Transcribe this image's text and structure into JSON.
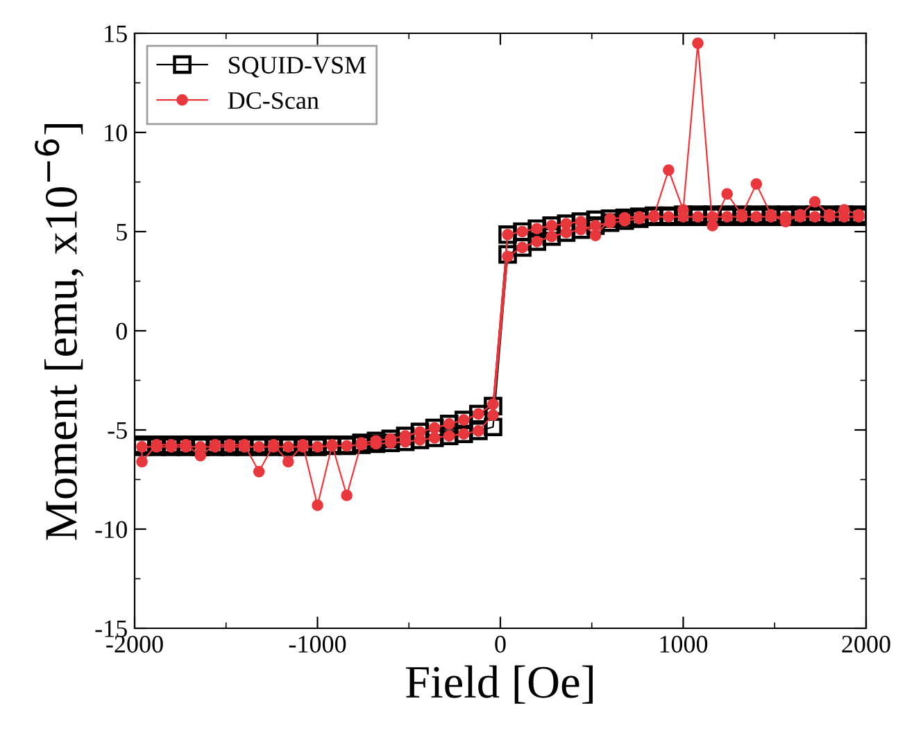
{
  "chart_data": {
    "type": "line",
    "xlabel": "Field [Oe]",
    "ylabel": "Moment [emu, x10$^{−6}$]",
    "xlim": [
      -2000,
      2000
    ],
    "xticks": [
      -2000,
      -1000,
      0,
      1000,
      2000
    ],
    "ylim": [
      -15,
      15
    ],
    "yticks": [
      -15,
      -10,
      -5,
      0,
      5,
      10,
      15
    ],
    "grid": false,
    "legend": "top left",
    "series": [
      {
        "name": "SQUID-VSM",
        "color": "#000000",
        "marker": "square",
        "x": [
          1960,
          1880,
          1800,
          1720,
          1640,
          1560,
          1480,
          1400,
          1320,
          1240,
          1160,
          1080,
          1000,
          920,
          840,
          760,
          680,
          600,
          520,
          440,
          360,
          280,
          200,
          120,
          40,
          -40,
          -120,
          -200,
          -280,
          -360,
          -440,
          -520,
          -600,
          -680,
          -760,
          -840,
          -920,
          -1000,
          -1080,
          -1160,
          -1240,
          -1320,
          -1400,
          -1480,
          -1560,
          -1640,
          -1720,
          -1800,
          -1880,
          -1960,
          -1960,
          -1880,
          -1800,
          -1720,
          -1640,
          -1560,
          -1480,
          -1400,
          -1320,
          -1240,
          -1160,
          -1080,
          -1000,
          -920,
          -840,
          -760,
          -680,
          -600,
          -520,
          -440,
          -360,
          -280,
          -200,
          -120,
          -40,
          40,
          120,
          200,
          280,
          360,
          440,
          520,
          600,
          680,
          760,
          840,
          920,
          1000,
          1080,
          1160,
          1240,
          1320,
          1400,
          1480,
          1560,
          1640,
          1720,
          1800,
          1880,
          1960
        ],
        "values": [
          5.85,
          5.85,
          5.85,
          5.85,
          5.85,
          5.85,
          5.85,
          5.85,
          5.85,
          5.85,
          5.85,
          5.85,
          5.85,
          5.8,
          5.8,
          5.75,
          5.7,
          5.65,
          5.6,
          5.5,
          5.4,
          5.3,
          5.15,
          5.0,
          4.85,
          -3.8,
          -4.2,
          -4.5,
          -4.7,
          -4.9,
          -5.1,
          -5.3,
          -5.45,
          -5.55,
          -5.65,
          -5.75,
          -5.75,
          -5.75,
          -5.75,
          -5.75,
          -5.75,
          -5.75,
          -5.75,
          -5.75,
          -5.75,
          -5.75,
          -5.75,
          -5.75,
          -5.75,
          -5.75,
          -5.85,
          -5.85,
          -5.85,
          -5.85,
          -5.85,
          -5.85,
          -5.85,
          -5.85,
          -5.85,
          -5.85,
          -5.85,
          -5.85,
          -5.85,
          -5.8,
          -5.8,
          -5.75,
          -5.7,
          -5.65,
          -5.6,
          -5.5,
          -5.4,
          -5.3,
          -5.2,
          -5.05,
          -4.85,
          3.85,
          4.2,
          4.5,
          4.75,
          4.95,
          5.1,
          5.3,
          5.45,
          5.55,
          5.65,
          5.75,
          5.75,
          5.75,
          5.75,
          5.75,
          5.75,
          5.75,
          5.75,
          5.75,
          5.75,
          5.75,
          5.75,
          5.75,
          5.75,
          5.75
        ]
      },
      {
        "name": "DC-Scan",
        "color": "#e8383d",
        "marker": "circle",
        "x": [
          1960,
          1880,
          1800,
          1720,
          1640,
          1560,
          1480,
          1400,
          1320,
          1240,
          1160,
          1080,
          1000,
          920,
          840,
          760,
          680,
          600,
          520,
          440,
          360,
          280,
          200,
          120,
          40,
          -40,
          -120,
          -200,
          -280,
          -360,
          -440,
          -520,
          -600,
          -680,
          -760,
          -840,
          -920,
          -1000,
          -1080,
          -1160,
          -1240,
          -1320,
          -1400,
          -1480,
          -1560,
          -1640,
          -1720,
          -1800,
          -1880,
          -1960,
          -1960,
          -1880,
          -1800,
          -1720,
          -1640,
          -1560,
          -1480,
          -1400,
          -1320,
          -1240,
          -1160,
          -1080,
          -1000,
          -920,
          -840,
          -760,
          -680,
          -600,
          -520,
          -440,
          -360,
          -280,
          -200,
          -120,
          -40,
          40,
          120,
          200,
          280,
          360,
          440,
          520,
          600,
          680,
          760,
          840,
          920,
          1000,
          1080,
          1160,
          1240,
          1320,
          1400,
          1480,
          1560,
          1640,
          1720,
          1800,
          1880,
          1960
        ],
        "values": [
          5.85,
          6.1,
          5.85,
          6.5,
          5.85,
          5.5,
          5.85,
          7.4,
          5.85,
          6.9,
          5.3,
          14.5,
          6.1,
          8.1,
          5.8,
          5.75,
          5.7,
          5.65,
          4.8,
          5.5,
          5.4,
          5.3,
          5.15,
          5.0,
          4.85,
          -3.7,
          -4.2,
          -4.5,
          -4.7,
          -4.9,
          -5.1,
          -5.3,
          -5.45,
          -5.55,
          -5.65,
          -8.3,
          -5.75,
          -8.8,
          -5.75,
          -6.6,
          -5.75,
          -7.1,
          -5.75,
          -5.75,
          -5.75,
          -6.3,
          -5.75,
          -5.75,
          -5.75,
          -6.6,
          -5.85,
          -5.85,
          -5.85,
          -5.85,
          -5.85,
          -5.85,
          -5.85,
          -5.85,
          -5.85,
          -5.85,
          -5.85,
          -5.85,
          -5.85,
          -5.8,
          -5.8,
          -5.75,
          -5.7,
          -5.65,
          -5.6,
          -5.5,
          -5.4,
          -5.3,
          -5.2,
          -5.05,
          -4.25,
          3.75,
          4.2,
          4.5,
          4.75,
          4.95,
          5.1,
          5.3,
          5.45,
          5.55,
          5.65,
          5.75,
          5.75,
          5.75,
          5.75,
          5.75,
          5.75,
          5.75,
          5.75,
          5.75,
          5.75,
          5.75,
          5.75,
          5.75,
          5.75,
          5.75
        ]
      }
    ]
  }
}
